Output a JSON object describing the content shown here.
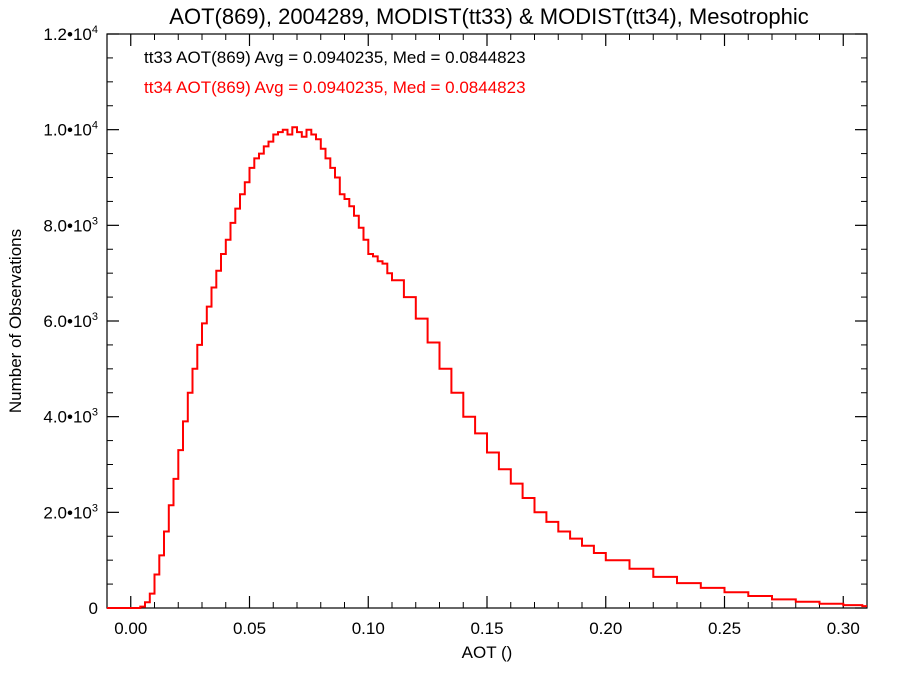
{
  "chart_data": {
    "type": "line",
    "title": "AOT(869), 2004289, MODIST(tt33) & MODIST(tt34), Mesotrophic",
    "xlabel": "AOT ()",
    "ylabel": "Number of Observations",
    "xlim": [
      -0.01,
      0.31
    ],
    "ylim": [
      0,
      12000
    ],
    "grid": false,
    "legend": "top-left",
    "x_ticks": [
      {
        "value": 0.0,
        "label": "0.00"
      },
      {
        "value": 0.05,
        "label": "0.05"
      },
      {
        "value": 0.1,
        "label": "0.10"
      },
      {
        "value": 0.15,
        "label": "0.15"
      },
      {
        "value": 0.2,
        "label": "0.20"
      },
      {
        "value": 0.25,
        "label": "0.25"
      },
      {
        "value": 0.3,
        "label": "0.30"
      }
    ],
    "y_ticks": [
      {
        "value": 0,
        "mant": "0",
        "exp": ""
      },
      {
        "value": 2000,
        "mant": "2.0•10",
        "exp": "3"
      },
      {
        "value": 4000,
        "mant": "4.0•10",
        "exp": "3"
      },
      {
        "value": 6000,
        "mant": "6.0•10",
        "exp": "3"
      },
      {
        "value": 8000,
        "mant": "8.0•10",
        "exp": "3"
      },
      {
        "value": 10000,
        "mant": "1.0•10",
        "exp": "4"
      },
      {
        "value": 12000,
        "mant": "1.2•10",
        "exp": "4"
      }
    ],
    "annotations": [
      {
        "text": "tt33 AOT(869) Avg = 0.0940235, Med = 0.0844823",
        "color": "#000000"
      },
      {
        "text": "tt34 AOT(869) Avg = 0.0940235, Med = 0.0844823",
        "color": "#ff0000"
      }
    ],
    "step": "histogram",
    "series": [
      {
        "color": "#ff0000",
        "x": [
          -0.01,
          0.0,
          0.004,
          0.006,
          0.008,
          0.01,
          0.012,
          0.014,
          0.016,
          0.018,
          0.02,
          0.022,
          0.024,
          0.026,
          0.028,
          0.03,
          0.032,
          0.034,
          0.036,
          0.038,
          0.04,
          0.042,
          0.044,
          0.046,
          0.048,
          0.05,
          0.052,
          0.054,
          0.056,
          0.058,
          0.06,
          0.062,
          0.064,
          0.066,
          0.068,
          0.07,
          0.072,
          0.074,
          0.076,
          0.078,
          0.08,
          0.082,
          0.084,
          0.086,
          0.088,
          0.09,
          0.092,
          0.094,
          0.096,
          0.098,
          0.1,
          0.102,
          0.104,
          0.106,
          0.108,
          0.11,
          0.115,
          0.12,
          0.125,
          0.13,
          0.135,
          0.14,
          0.145,
          0.15,
          0.155,
          0.16,
          0.165,
          0.17,
          0.175,
          0.18,
          0.185,
          0.19,
          0.195,
          0.2,
          0.21,
          0.22,
          0.23,
          0.24,
          0.25,
          0.26,
          0.27,
          0.28,
          0.29,
          0.3,
          0.308
        ],
        "y": [
          0,
          0,
          30,
          120,
          300,
          700,
          1100,
          1600,
          2150,
          2700,
          3300,
          3900,
          4500,
          5000,
          5500,
          5950,
          6300,
          6700,
          7050,
          7400,
          7700,
          8050,
          8350,
          8650,
          8900,
          9200,
          9400,
          9500,
          9650,
          9750,
          9900,
          9950,
          10000,
          9900,
          10050,
          9950,
          9850,
          10000,
          9900,
          9800,
          9600,
          9400,
          9200,
          9000,
          8650,
          8550,
          8400,
          8200,
          7950,
          7700,
          7400,
          7350,
          7250,
          7200,
          7000,
          6850,
          6500,
          6050,
          5550,
          5000,
          4500,
          4000,
          3650,
          3250,
          2900,
          2600,
          2300,
          2000,
          1800,
          1600,
          1450,
          1300,
          1150,
          1000,
          820,
          650,
          520,
          420,
          330,
          250,
          180,
          130,
          90,
          60,
          40
        ]
      }
    ]
  }
}
